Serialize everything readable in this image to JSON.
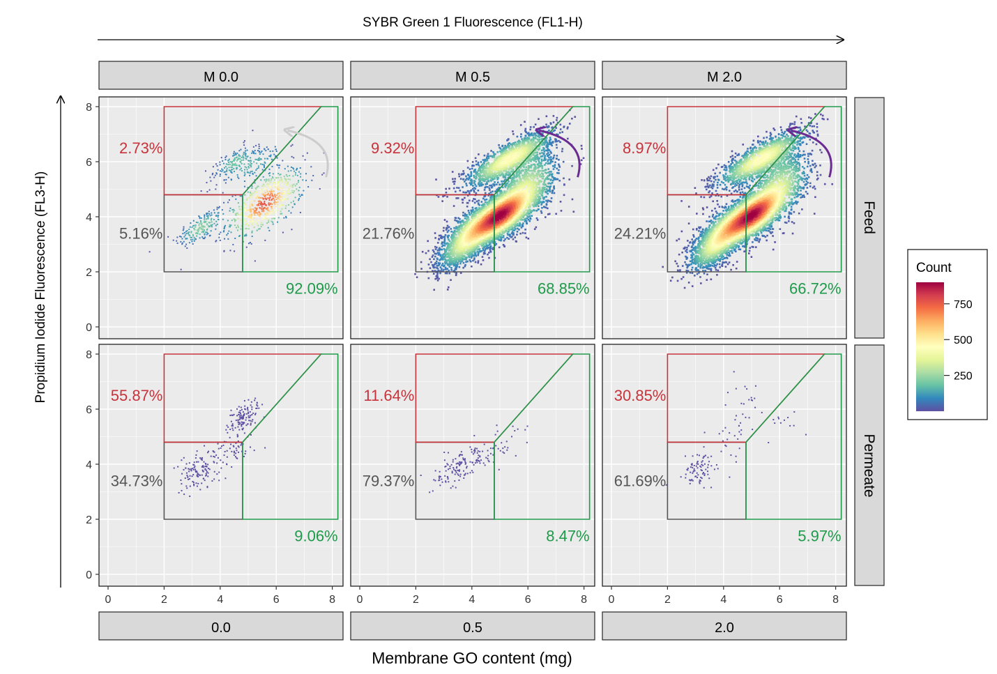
{
  "figure": {
    "top_axis_title": "SYBR Green 1 Fluorescence (FL1-H)",
    "left_axis_title": "Propidium Iodide Fluorescence (FL3-H)",
    "bottom_axis_title": "Membrane GO content (mg)",
    "column_strips": [
      "M 0.0",
      "M 0.5",
      "M 2.0"
    ],
    "bottom_strips": [
      "0.0",
      "0.5",
      "2.0"
    ],
    "row_strips": [
      "Feed",
      "Permeate"
    ],
    "legend": {
      "title": "Count",
      "ticks": [
        250,
        500,
        750
      ],
      "range": [
        0,
        900
      ],
      "colors": [
        "#5e4fa2",
        "#3288bd",
        "#66c2a5",
        "#abdda4",
        "#e6f598",
        "#ffffbf",
        "#fee08b",
        "#fdae61",
        "#f46d43",
        "#d53e4f",
        "#9e0142"
      ]
    },
    "colors": {
      "dead_gate": "#c8323a",
      "live_gate": "#1e9a4a",
      "neutral_gate": "#555555",
      "panel_bg": "#ebebeb",
      "strip_bg": "#d9d9d9",
      "arrow_feed_m00": "#cccccc",
      "arrow_feed_other": "#6a2c91"
    }
  },
  "chart_data": {
    "type": "scatter",
    "facet_grid": {
      "rows": [
        "Feed",
        "Permeate"
      ],
      "cols": [
        "M 0.0",
        "M 0.5",
        "M 2.0"
      ]
    },
    "x_axis": {
      "lim": [
        0,
        8
      ],
      "ticks": [
        0,
        2,
        4,
        6,
        8
      ]
    },
    "y_axis": {
      "lim": [
        0,
        8
      ],
      "ticks": [
        0,
        2,
        4,
        6,
        8
      ]
    },
    "grid": true,
    "gates": {
      "dead": [
        [
          2,
          4.8
        ],
        [
          2,
          8
        ],
        [
          7.6,
          8
        ],
        [
          4.8,
          4.8
        ]
      ],
      "neutral": [
        [
          2,
          2
        ],
        [
          2,
          4.8
        ],
        [
          4.8,
          4.8
        ],
        [
          4.8,
          2
        ]
      ],
      "live": [
        [
          4.8,
          2
        ],
        [
          4.8,
          4.8
        ],
        [
          7.6,
          8
        ],
        [
          8.2,
          8
        ],
        [
          8.2,
          2
        ]
      ]
    },
    "panels": [
      {
        "row": "Feed",
        "col": "M 0.0",
        "dead": "2.73%",
        "neutral": "5.16%",
        "live": "92.09%",
        "density": "low",
        "clusters": [
          [
            3.3,
            3.6,
            0.45,
            0.3,
            180
          ],
          [
            5.6,
            4.5,
            0.7,
            0.55,
            600
          ],
          [
            4.5,
            6.0,
            0.4,
            0.25,
            140
          ],
          [
            5.2,
            5.9,
            0.6,
            0.3,
            120
          ]
        ]
      },
      {
        "row": "Feed",
        "col": "M 0.5",
        "dead": "9.32%",
        "neutral": "21.76%",
        "live": "68.85%",
        "density": "high",
        "clusters": [
          [
            5.1,
            4.1,
            0.55,
            0.45,
            2000
          ],
          [
            4.2,
            3.6,
            0.6,
            0.45,
            1300
          ],
          [
            5.3,
            6.1,
            0.8,
            0.35,
            1300
          ],
          [
            6.0,
            5.1,
            0.6,
            0.7,
            900
          ],
          [
            3.6,
            2.8,
            0.5,
            0.4,
            600
          ]
        ]
      },
      {
        "row": "Feed",
        "col": "M 2.0",
        "dead": "8.97%",
        "neutral": "24.21%",
        "live": "66.72%",
        "density": "high",
        "clusters": [
          [
            5.1,
            4.1,
            0.55,
            0.45,
            2000
          ],
          [
            4.2,
            3.6,
            0.6,
            0.45,
            1300
          ],
          [
            5.3,
            6.1,
            0.8,
            0.35,
            1300
          ],
          [
            6.0,
            5.1,
            0.6,
            0.7,
            900
          ],
          [
            3.6,
            2.8,
            0.5,
            0.4,
            700
          ]
        ]
      },
      {
        "row": "Permeate",
        "col": "M 0.0",
        "dead": "55.87%",
        "neutral": "34.73%",
        "live": "9.06%",
        "density": "sparse",
        "clusters": [
          [
            3.2,
            3.7,
            0.35,
            0.4,
            120
          ],
          [
            4.9,
            5.7,
            0.3,
            0.3,
            120
          ],
          [
            4.5,
            4.5,
            0.4,
            0.4,
            60
          ]
        ]
      },
      {
        "row": "Permeate",
        "col": "M 0.5",
        "dead": "11.64%",
        "neutral": "79.37%",
        "live": "8.47%",
        "density": "sparse",
        "clusters": [
          [
            3.6,
            4.0,
            0.5,
            0.3,
            130
          ],
          [
            4.9,
            4.6,
            0.6,
            0.4,
            40
          ]
        ]
      },
      {
        "row": "Permeate",
        "col": "M 2.0",
        "dead": "30.85%",
        "neutral": "61.69%",
        "live": "5.97%",
        "density": "sparse",
        "clusters": [
          [
            3.2,
            3.8,
            0.35,
            0.35,
            80
          ],
          [
            4.5,
            5.5,
            0.4,
            0.7,
            45
          ],
          [
            6.2,
            5.4,
            0.3,
            0.3,
            12
          ]
        ]
      }
    ]
  }
}
